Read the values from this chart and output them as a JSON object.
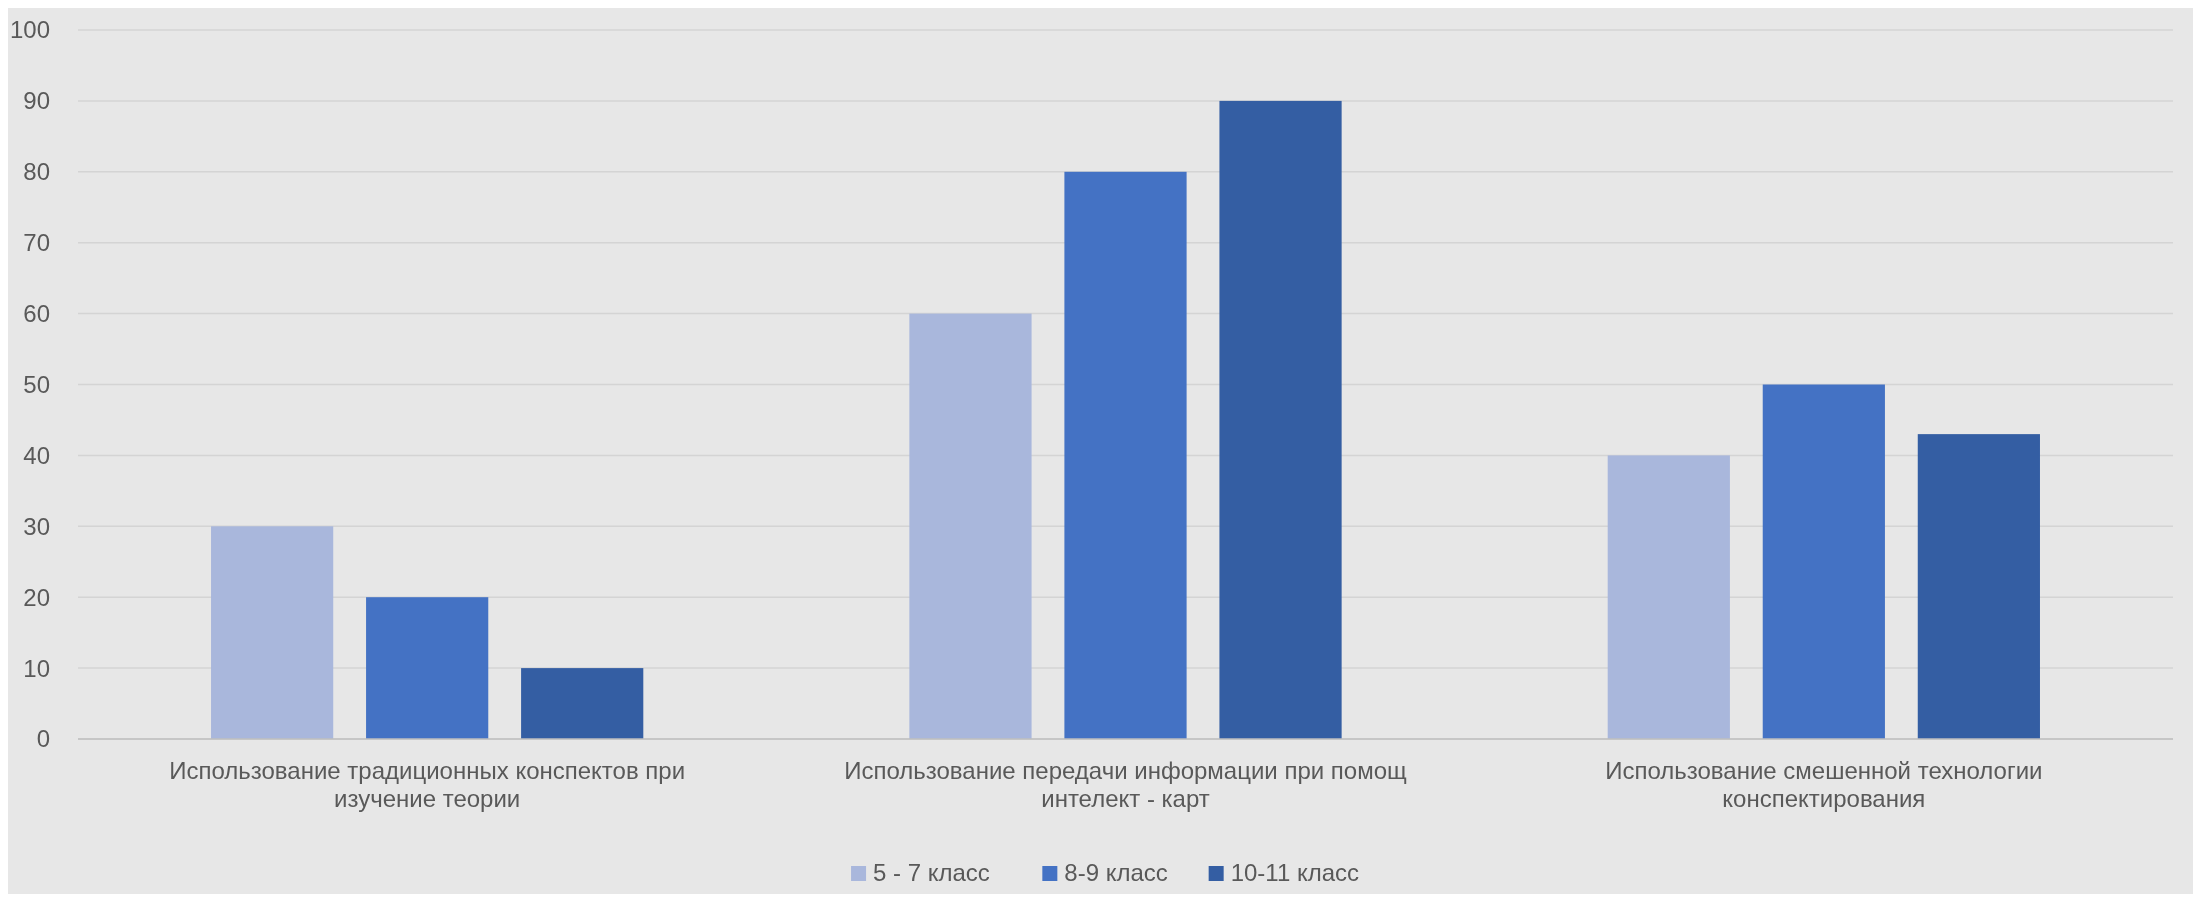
{
  "chart_data": {
    "type": "bar",
    "categories": [
      "Использование традиционных конспектов при изучение теории",
      "Использование передачи информации при помощ интелект - карт",
      "Использование смешенной технологии конспектирования"
    ],
    "series": [
      {
        "name": "5 - 7 класс",
        "color": "#a9b7dc",
        "values": [
          30,
          60,
          40
        ]
      },
      {
        "name": "8-9 класс",
        "color": "#4472c4",
        "values": [
          20,
          80,
          50
        ]
      },
      {
        "name": "10-11 класс",
        "color": "#345ea3",
        "values": [
          10,
          90,
          43
        ]
      }
    ],
    "ylim": [
      0,
      100
    ],
    "yticks": [
      0,
      10,
      20,
      30,
      40,
      50,
      60,
      70,
      80,
      90,
      100
    ],
    "grid": "y",
    "legend": "bottom"
  }
}
